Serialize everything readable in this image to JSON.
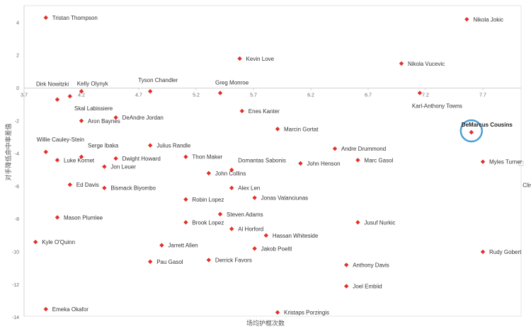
{
  "chart_data": {
    "type": "scatter",
    "title": "",
    "xlabel": "场均护框次数",
    "ylabel": "对手降低命中率差值",
    "xlim": [
      3.7,
      8.3
    ],
    "ylim": [
      -14.5,
      5.0
    ],
    "x_ticks": [
      "3.7",
      "4.2",
      "4.7",
      "5.2",
      "5.7",
      "6.2",
      "6.7",
      "7.2",
      "7.7"
    ],
    "y_ticks": [
      "4",
      "2",
      "0",
      "-2",
      "-4",
      "-6",
      "-8",
      "-10",
      "-12",
      "-14"
    ],
    "grid": false,
    "marker_color": "#e0302a",
    "highlight_color": "#4a9fd4",
    "highlight": "DeMarcus Cousins",
    "points": [
      {
        "name": "Tristan Thompson",
        "x": 3.89,
        "y": 4.3
      },
      {
        "name": "Nikola Jokic",
        "x": 7.56,
        "y": 4.2
      },
      {
        "name": "Kevin Love",
        "x": 5.58,
        "y": 1.8
      },
      {
        "name": "Nikola Vucevic",
        "x": 6.99,
        "y": 1.5
      },
      {
        "name": "Dirk Nowitzki",
        "x": 3.99,
        "y": -0.7
      },
      {
        "name": "Kelly Olynyk",
        "x": 4.1,
        "y": -0.5
      },
      {
        "name": "Tyson Chandler",
        "x": 4.8,
        "y": -0.2
      },
      {
        "name": "Greg Monroe",
        "x": 5.41,
        "y": -0.3
      },
      {
        "name": "Karl-Anthony Towns",
        "x": 7.15,
        "y": -0.3
      },
      {
        "name": "Skal Labissiere",
        "x": 4.2,
        "y": -0.2
      },
      {
        "name": "Aron Baynes",
        "x": 4.2,
        "y": -2.0
      },
      {
        "name": "DeAndre Jordan",
        "x": 4.5,
        "y": -1.8
      },
      {
        "name": "Enes Kanter",
        "x": 5.6,
        "y": -1.4
      },
      {
        "name": "Marcin Gortat",
        "x": 5.91,
        "y": -2.5
      },
      {
        "name": "DeMarcus Cousins",
        "x": 7.6,
        "y": -2.7
      },
      {
        "name": "Willie Cauley-Stein",
        "x": 3.89,
        "y": -3.9
      },
      {
        "name": "Luke Kornet",
        "x": 3.99,
        "y": -4.4
      },
      {
        "name": "Serge Ibaka",
        "x": 4.2,
        "y": -4.2
      },
      {
        "name": "Dwight Howard",
        "x": 4.5,
        "y": -4.3
      },
      {
        "name": "Jon Leuer",
        "x": 4.4,
        "y": -4.8
      },
      {
        "name": "Julius Randle",
        "x": 4.8,
        "y": -3.5
      },
      {
        "name": "Thon Maker",
        "x": 5.11,
        "y": -4.2
      },
      {
        "name": "Domantas Sabonis",
        "x": 5.51,
        "y": -5.0
      },
      {
        "name": "John Collins",
        "x": 5.31,
        "y": -5.2
      },
      {
        "name": "John Henson",
        "x": 6.11,
        "y": -4.6
      },
      {
        "name": "Andre Drummond",
        "x": 6.41,
        "y": -3.7
      },
      {
        "name": "Marc Gasol",
        "x": 6.61,
        "y": -4.4
      },
      {
        "name": "Myles Turner",
        "x": 7.7,
        "y": -4.5
      },
      {
        "name": "Clint Capela",
        "x": 8.3,
        "y": -5.1
      },
      {
        "name": "Ed Davis",
        "x": 4.1,
        "y": -5.9
      },
      {
        "name": "Bismack Biyombo",
        "x": 4.4,
        "y": -6.1
      },
      {
        "name": "Alex Len",
        "x": 5.51,
        "y": -6.1
      },
      {
        "name": "Jonas Valanciunas",
        "x": 5.71,
        "y": -6.7
      },
      {
        "name": "Robin Lopez",
        "x": 5.11,
        "y": -6.8
      },
      {
        "name": "Steven Adams",
        "x": 5.41,
        "y": -7.7
      },
      {
        "name": "Brook Lopez",
        "x": 5.11,
        "y": -8.2
      },
      {
        "name": "Al Horford",
        "x": 5.51,
        "y": -8.6
      },
      {
        "name": "Hassan Whiteside",
        "x": 5.81,
        "y": -9.0
      },
      {
        "name": "Jusuf Nurkic",
        "x": 6.61,
        "y": -8.2
      },
      {
        "name": "Mason Plumlee",
        "x": 3.99,
        "y": -7.9
      },
      {
        "name": "Kyle O'Quinn",
        "x": 3.8,
        "y": -9.4
      },
      {
        "name": "Jarrett Allen",
        "x": 4.9,
        "y": -9.6
      },
      {
        "name": "Jakob Poeltl",
        "x": 5.71,
        "y": -9.8
      },
      {
        "name": "Pau Gasol",
        "x": 4.8,
        "y": -10.6
      },
      {
        "name": "Derrick Favors",
        "x": 5.31,
        "y": -10.5
      },
      {
        "name": "Anthony Davis",
        "x": 6.51,
        "y": -10.8
      },
      {
        "name": "Rudy Gobert",
        "x": 7.7,
        "y": -10.0
      },
      {
        "name": "Joel Embiid",
        "x": 6.51,
        "y": -12.1
      },
      {
        "name": "Emeka Okafor",
        "x": 3.89,
        "y": -13.5
      },
      {
        "name": "Kristaps Porzingis",
        "x": 5.91,
        "y": -13.7
      }
    ]
  }
}
